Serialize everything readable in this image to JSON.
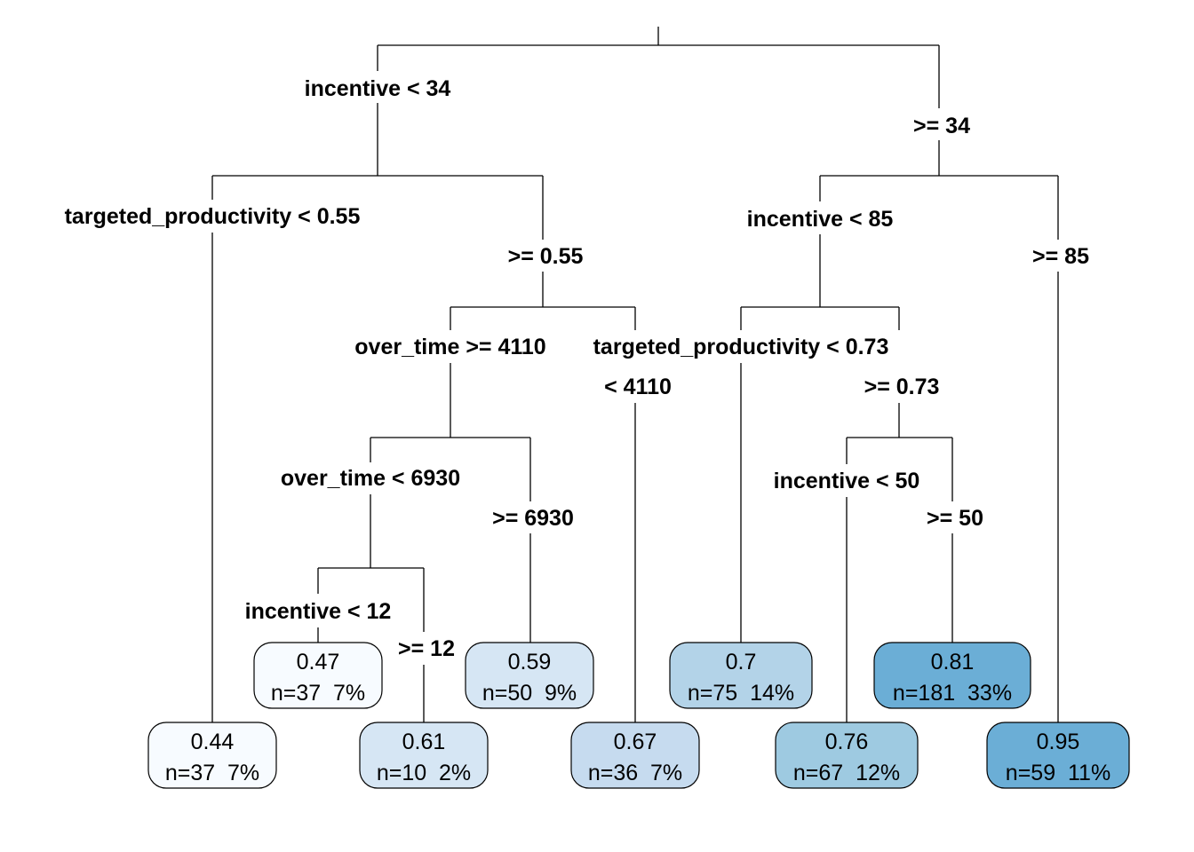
{
  "splits": [
    {
      "id": "s_incentive34",
      "left_label": "incentive < 34",
      "right_label": ">= 34"
    },
    {
      "id": "s_tp055",
      "left_label": "targeted_productivity < 0.55",
      "right_label": ">= 0.55"
    },
    {
      "id": "s_inc85",
      "left_label": "incentive < 85",
      "right_label": ">= 85"
    },
    {
      "id": "s_ot4110",
      "left_label": "over_time >= 4110",
      "right_label": "< 4110"
    },
    {
      "id": "s_tp073",
      "left_label": "targeted_productivity < 0.73",
      "right_label": ">= 0.73"
    },
    {
      "id": "s_ot6930",
      "left_label": "over_time < 6930",
      "right_label": ">= 6930"
    },
    {
      "id": "s_inc50",
      "left_label": "incentive < 50",
      "right_label": ">= 50"
    },
    {
      "id": "s_inc12",
      "left_label": "incentive < 12",
      "right_label": ">= 12"
    }
  ],
  "leaves": [
    {
      "id": "leaf_044",
      "value": "0.44",
      "stats": "n=37  7%",
      "color": "#f7fbff"
    },
    {
      "id": "leaf_047",
      "value": "0.47",
      "stats": "n=37  7%",
      "color": "#f7fbff"
    },
    {
      "id": "leaf_061",
      "value": "0.61",
      "stats": "n=10  2%",
      "color": "#d6e6f4"
    },
    {
      "id": "leaf_059",
      "value": "0.59",
      "stats": "n=50  9%",
      "color": "#d6e6f4"
    },
    {
      "id": "leaf_067",
      "value": "0.67",
      "stats": "n=36  7%",
      "color": "#c6dbef"
    },
    {
      "id": "leaf_07",
      "value": "0.7",
      "stats": "n=75  14%",
      "color": "#b3d3e8"
    },
    {
      "id": "leaf_076",
      "value": "0.76",
      "stats": "n=67  12%",
      "color": "#9ecae1"
    },
    {
      "id": "leaf_081",
      "value": "0.81",
      "stats": "n=181  33%",
      "color": "#6baed6"
    },
    {
      "id": "leaf_095",
      "value": "0.95",
      "stats": "n=59  11%",
      "color": "#6baed6"
    }
  ]
}
